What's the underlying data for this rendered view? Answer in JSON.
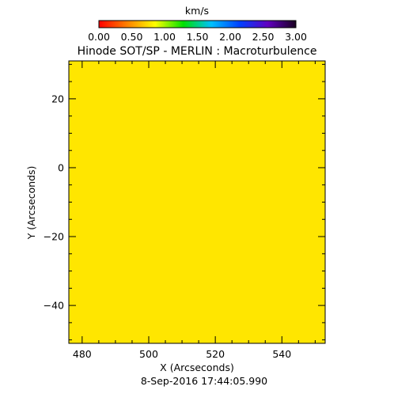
{
  "chart_data": {
    "type": "heatmap",
    "title": "Hinode SOT/SP - MERLIN : Macroturbulence",
    "xlabel": "X (Arcseconds)",
    "ylabel": "Y (Arcseconds)",
    "timestamp": "8-Sep-2016 17:44:05.990",
    "xlim": [
      476,
      553
    ],
    "ylim": [
      -51,
      31
    ],
    "x_ticks": [
      480,
      500,
      520,
      540
    ],
    "y_ticks": [
      20,
      0,
      -20,
      -40
    ],
    "x_tick_labels": [
      "480",
      "500",
      "520",
      "540"
    ],
    "y_tick_labels": [
      "20",
      "0",
      "−20",
      "−40"
    ],
    "field_value_kms": 1.0,
    "field_color": "#ffe600",
    "colorbar": {
      "unit": "km/s",
      "range": [
        0.0,
        3.0
      ],
      "tick_values": [
        0.0,
        0.5,
        1.0,
        1.5,
        2.0,
        2.5,
        3.0
      ],
      "tick_labels": [
        "0.00",
        "0.50",
        "1.00",
        "1.50",
        "2.00",
        "2.50",
        "3.00"
      ],
      "colors": [
        "#ff0000",
        "#ff8000",
        "#ffff00",
        "#00e000",
        "#00c0ff",
        "#0040ff",
        "#6000c0",
        "#1a0020"
      ]
    }
  }
}
